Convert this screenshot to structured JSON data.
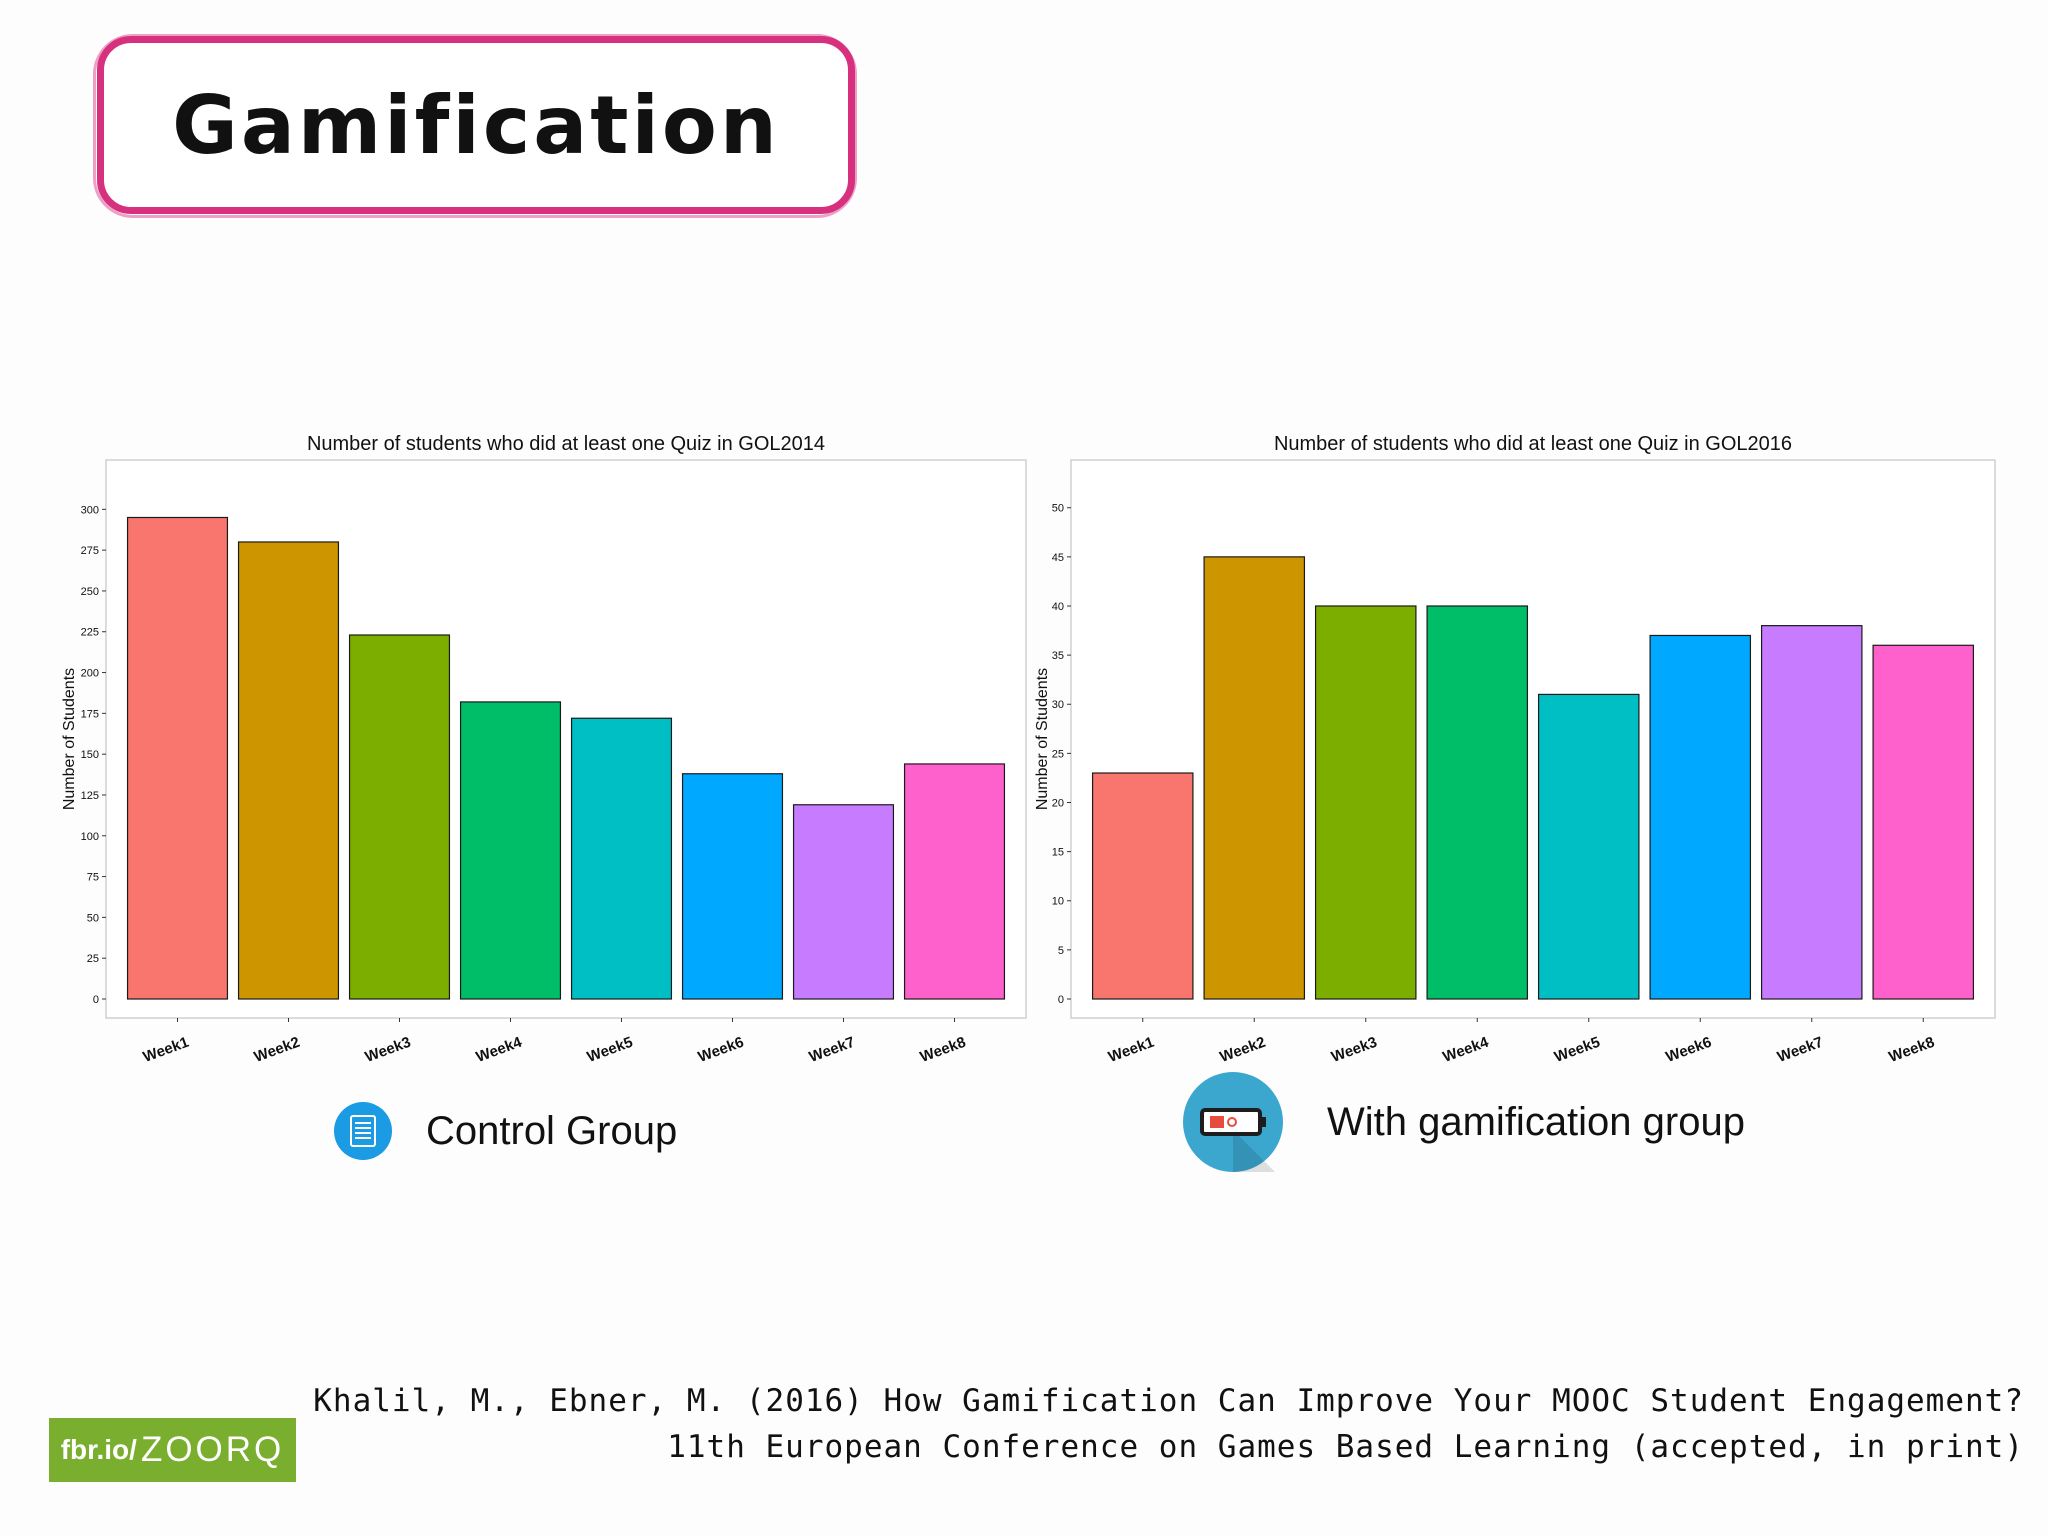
{
  "slide": {
    "title": "Gamification",
    "brand_prefix": "fbr.io/",
    "brand_code": "ZOORQ",
    "citation_line1": "Khalil, M., Ebner, M. (2016) How Gamification Can Improve Your MOOC Student Engagement?",
    "citation_line2": "11th European Conference on Games Based Learning (accepted, in print)"
  },
  "legend": {
    "control_label": "Control Group",
    "control_icon": "document-list-icon",
    "gamified_label": "With gamification group",
    "gamified_icon": "battery-icon"
  },
  "colors": {
    "accent_frame": "#d6307e",
    "brand_green": "#7aae2e",
    "control_icon_bg": "#1a9be3",
    "gamified_icon_bg": "#3ba7cf"
  },
  "chart_data": [
    {
      "type": "bar",
      "title": "Number of students who did at least one Quiz in GOL2014",
      "xlabel": "",
      "ylabel": "Number of Students",
      "categories": [
        "Week1",
        "Week2",
        "Week3",
        "Week4",
        "Week5",
        "Week6",
        "Week7",
        "Week8"
      ],
      "values": [
        295,
        280,
        223,
        182,
        172,
        138,
        119,
        144
      ],
      "colors": [
        "#f8766d",
        "#cd9600",
        "#7cae00",
        "#00be67",
        "#00bfc4",
        "#00a9ff",
        "#c77cff",
        "#ff61cc"
      ],
      "ylim": [
        0,
        310
      ],
      "yticks": [
        0,
        25,
        50,
        75,
        100,
        125,
        150,
        175,
        200,
        225,
        250,
        275,
        300
      ],
      "grid": false,
      "legend": "none"
    },
    {
      "type": "bar",
      "title": "Number of students who did at least one Quiz in GOL2016",
      "xlabel": "",
      "ylabel": "Number of Students",
      "categories": [
        "Week1",
        "Week2",
        "Week3",
        "Week4",
        "Week5",
        "Week6",
        "Week7",
        "Week8"
      ],
      "values": [
        23,
        45,
        40,
        40,
        31,
        37,
        38,
        36
      ],
      "colors": [
        "#f8766d",
        "#cd9600",
        "#7cae00",
        "#00be67",
        "#00bfc4",
        "#00a9ff",
        "#c77cff",
        "#ff61cc"
      ],
      "ylim": [
        0,
        51.5
      ],
      "yticks": [
        0,
        5,
        10,
        15,
        20,
        25,
        30,
        35,
        40,
        45,
        50
      ],
      "grid": false,
      "legend": "none"
    }
  ]
}
